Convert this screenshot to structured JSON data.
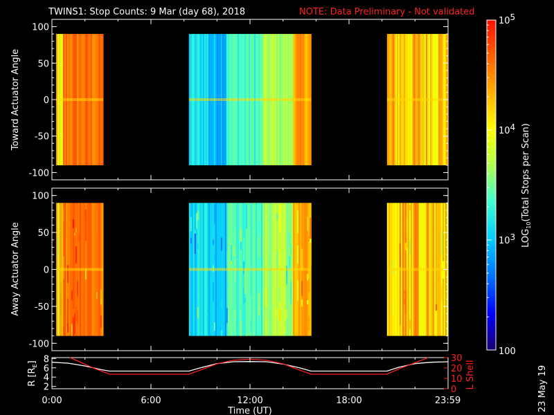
{
  "header": {
    "title": "TWINS1: Stop Counts:  9 Mar (day  68), 2018",
    "note": "NOTE: Data Preliminary - Not validated"
  },
  "footer": {
    "date_stamp": "23 May 19"
  },
  "colors": {
    "background": "#000000",
    "note": "#ff2020",
    "axis": "#ffffff",
    "orbit_r": "#ffffff",
    "orbit_lshell": "#ff2020"
  },
  "chart_data": [
    {
      "id": "toward",
      "type": "heatmap",
      "ylabel": "Toward Actuator Angle",
      "ylim": [
        -110,
        110
      ],
      "yticks": [
        100,
        50,
        0,
        -50,
        -100
      ],
      "xlim": [
        0,
        24
      ],
      "data_y_range": [
        -90,
        90
      ],
      "scan_intervals_hours": [
        [
          0.25,
          3.1
        ],
        [
          8.3,
          15.7
        ],
        [
          20.3,
          24.0
        ]
      ]
    },
    {
      "id": "away",
      "type": "heatmap",
      "ylabel": "Away Actuator Angle",
      "ylim": [
        -110,
        110
      ],
      "yticks": [
        100,
        50,
        0,
        -50,
        -100
      ],
      "xlim": [
        0,
        24
      ],
      "data_y_range": [
        -90,
        90
      ],
      "scan_intervals_hours": [
        [
          0.25,
          3.1
        ],
        [
          8.3,
          15.7
        ],
        [
          20.3,
          24.0
        ]
      ]
    },
    {
      "id": "orbit",
      "type": "line",
      "xlabel": "Time (UT)",
      "xticks": [
        "0:00",
        "6:00",
        "12:00",
        "18:00",
        "23:59"
      ],
      "xtick_hours": [
        0,
        6,
        12,
        18,
        23.983
      ],
      "xlim": [
        0,
        24
      ],
      "left_axis": {
        "label": "R [R",
        "label_sub": "E",
        "label_end": "]",
        "ylim": [
          1.5,
          8.2
        ],
        "yticks": [
          "8",
          "6",
          "4",
          "2"
        ],
        "ytick_values": [
          8,
          6,
          4,
          2
        ]
      },
      "right_axis": {
        "label": "L Shell",
        "ylim": [
          0,
          30
        ],
        "yticks": [
          "30",
          "20",
          "10",
          "0"
        ],
        "ytick_values": [
          30,
          20,
          10,
          0
        ]
      },
      "series": [
        {
          "name": "R",
          "axis": "left",
          "x": [
            0,
            1,
            2,
            3,
            3.5,
            8.3,
            9,
            10,
            11,
            12,
            13,
            14,
            15,
            15.7,
            20.3,
            21,
            22,
            23,
            24
          ],
          "values": [
            7.2,
            7.0,
            6.4,
            5.6,
            5.3,
            5.3,
            6.0,
            6.9,
            7.3,
            7.35,
            7.3,
            6.8,
            6.0,
            5.3,
            5.3,
            6.1,
            6.9,
            7.2,
            7.3
          ]
        },
        {
          "name": "L Shell",
          "axis": "right",
          "x": [
            1.1,
            1.8,
            2.5,
            3.0,
            3.5,
            8.3,
            9,
            10,
            11,
            12,
            13,
            14,
            15,
            15.7,
            20.3,
            21,
            22,
            22.8
          ],
          "values": [
            30,
            25,
            20,
            17,
            14,
            14,
            18,
            24,
            27.5,
            28.5,
            27.5,
            24,
            18,
            14,
            14,
            19,
            25,
            30
          ]
        }
      ]
    }
  ],
  "colorbar": {
    "label_prefix": "LOG",
    "label_sub": "10",
    "label_suffix": "(Total Stops per Scan)",
    "ticks": [
      {
        "base": "10",
        "exp": "5",
        "value": 100000
      },
      {
        "base": "10",
        "exp": "4",
        "value": 10000
      },
      {
        "base": "10",
        "exp": "3",
        "value": 1000
      },
      {
        "base": "100",
        "exp": "",
        "value": 100
      }
    ],
    "range": [
      100,
      100000
    ],
    "scale": "log",
    "palette": [
      "#1a0070",
      "#0000ff",
      "#0070ff",
      "#00c8ff",
      "#40ffd0",
      "#b0ff50",
      "#ffff00",
      "#ffb000",
      "#ff6000",
      "#ff1000"
    ]
  }
}
